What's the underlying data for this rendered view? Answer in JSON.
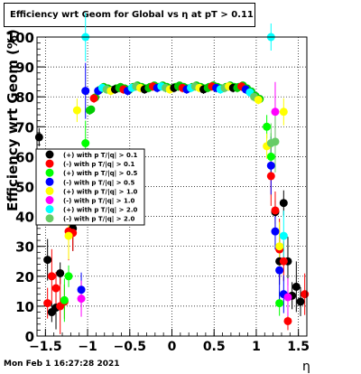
{
  "title": "Efficiency wrt Geom for Global vs   η at pT > 0.11",
  "footer_text": "Mon Feb  1 16:27:28 2021",
  "chart_data": {
    "type": "scatter",
    "ylabel": "Efficiency wrt Geom (%)",
    "xlabel": "η",
    "xlim": [
      -1.6,
      1.6
    ],
    "ylim": [
      0,
      100
    ],
    "x_ticks": [
      -1.5,
      -1,
      -0.5,
      0,
      0.5,
      1,
      1.5
    ],
    "x_tick_labels": [
      "−1.5",
      "−1",
      "−0.5",
      "0",
      "0.5",
      "1",
      "1.5"
    ],
    "y_ticks": [
      0,
      10,
      20,
      30,
      40,
      50,
      60,
      70,
      80,
      90,
      100
    ],
    "grid": true,
    "legend_position": "middle-left",
    "series": [
      {
        "name": "(+) with p T/|q| > 0.1",
        "color": "#000000",
        "points": [
          [
            -1.575,
            66.5
          ],
          [
            -1.475,
            25.5
          ],
          [
            -1.425,
            8.0
          ],
          [
            -1.375,
            9.5
          ],
          [
            -1.325,
            21.0
          ],
          [
            -1.175,
            36.0
          ],
          [
            1.225,
            41.5
          ],
          [
            1.275,
            25.0
          ],
          [
            1.325,
            44.5
          ],
          [
            1.375,
            25.0
          ],
          [
            1.425,
            13.5
          ],
          [
            1.475,
            16.5
          ],
          [
            1.525,
            11.5
          ]
        ]
      },
      {
        "name": "(-) with p T/|q| > 0.1",
        "color": "#ff0000",
        "points": [
          [
            -1.475,
            11.0
          ],
          [
            -1.425,
            20.0
          ],
          [
            -1.375,
            16.0
          ],
          [
            -1.325,
            10.0
          ],
          [
            -1.275,
            11.5
          ],
          [
            -1.225,
            35.0
          ],
          [
            -1.175,
            34.5
          ],
          [
            1.175,
            53.5
          ],
          [
            1.225,
            42.0
          ],
          [
            1.275,
            29.0
          ],
          [
            1.325,
            25.0
          ],
          [
            1.375,
            5.0
          ],
          [
            1.575,
            14.0
          ]
        ]
      },
      {
        "name": "(+) with p T/|q| > 0.5",
        "color": "#00ff00",
        "points": [
          [
            -1.275,
            12.0
          ],
          [
            -1.225,
            20.0
          ],
          [
            -1.025,
            64.5
          ],
          [
            1.125,
            70.0
          ],
          [
            1.175,
            60.0
          ],
          [
            1.275,
            11.0
          ]
        ]
      },
      {
        "name": "(-) with p T/|q| > 0.5",
        "color": "#0000ff",
        "points": [
          [
            -1.025,
            82.0
          ],
          [
            -1.075,
            15.5
          ],
          [
            1.175,
            57.0
          ],
          [
            1.225,
            35.0
          ],
          [
            1.275,
            22.0
          ],
          [
            1.325,
            14.0
          ]
        ]
      },
      {
        "name": "(+) with p T/|q| > 1.0",
        "color": "#ffff00",
        "points": [
          [
            -1.125,
            75.5
          ],
          [
            -1.225,
            33.5
          ],
          [
            1.125,
            63.5
          ],
          [
            1.275,
            30.0
          ],
          [
            1.325,
            75.0
          ]
        ]
      },
      {
        "name": "(-) with p T/|q| > 1.0",
        "color": "#ff00ff",
        "points": [
          [
            -1.075,
            12.5
          ],
          [
            1.225,
            75.0
          ],
          [
            1.375,
            13.0
          ]
        ]
      },
      {
        "name": "(+) with p T/|q| > 2.0",
        "color": "#00ffff",
        "points": [
          [
            -1.025,
            100.0
          ],
          [
            1.175,
            100.0
          ],
          [
            1.325,
            33.5
          ]
        ]
      },
      {
        "name": "(-) with p T/|q| > 2.0",
        "color": "#66cc66",
        "points": [
          [
            1.225,
            65.0
          ],
          [
            1.175,
            64.5
          ]
        ]
      }
    ],
    "plateau_points": [
      {
        "x": -0.975,
        "y": 75.5
      },
      {
        "x": -0.925,
        "y": 79.5
      },
      {
        "x": -0.875,
        "y": 82.0
      },
      {
        "x": -0.825,
        "y": 83.0
      },
      {
        "x": -0.775,
        "y": 82.5
      },
      {
        "x": -0.725,
        "y": 82.0
      },
      {
        "x": -0.675,
        "y": 82.5
      },
      {
        "x": -0.625,
        "y": 83.0
      },
      {
        "x": -0.575,
        "y": 82.5
      },
      {
        "x": -0.525,
        "y": 82.0
      },
      {
        "x": -0.475,
        "y": 83.0
      },
      {
        "x": -0.425,
        "y": 83.5
      },
      {
        "x": -0.375,
        "y": 83.0
      },
      {
        "x": -0.325,
        "y": 82.5
      },
      {
        "x": -0.275,
        "y": 83.0
      },
      {
        "x": -0.225,
        "y": 83.5
      },
      {
        "x": -0.175,
        "y": 83.0
      },
      {
        "x": -0.125,
        "y": 83.5
      },
      {
        "x": -0.075,
        "y": 83.0
      },
      {
        "x": -0.025,
        "y": 82.5
      },
      {
        "x": 0.025,
        "y": 83.0
      },
      {
        "x": 0.075,
        "y": 83.5
      },
      {
        "x": 0.125,
        "y": 83.0
      },
      {
        "x": 0.175,
        "y": 82.5
      },
      {
        "x": 0.225,
        "y": 83.0
      },
      {
        "x": 0.275,
        "y": 83.5
      },
      {
        "x": 0.325,
        "y": 83.0
      },
      {
        "x": 0.375,
        "y": 82.5
      },
      {
        "x": 0.425,
        "y": 83.0
      },
      {
        "x": 0.475,
        "y": 83.5
      },
      {
        "x": 0.525,
        "y": 83.0
      },
      {
        "x": 0.575,
        "y": 82.5
      },
      {
        "x": 0.625,
        "y": 83.0
      },
      {
        "x": 0.675,
        "y": 83.5
      },
      {
        "x": 0.725,
        "y": 83.0
      },
      {
        "x": 0.775,
        "y": 83.0
      },
      {
        "x": 0.825,
        "y": 83.5
      },
      {
        "x": 0.875,
        "y": 82.5
      },
      {
        "x": 0.925,
        "y": 81.5
      },
      {
        "x": 0.975,
        "y": 80.0
      },
      {
        "x": 1.025,
        "y": 79.0
      }
    ]
  }
}
